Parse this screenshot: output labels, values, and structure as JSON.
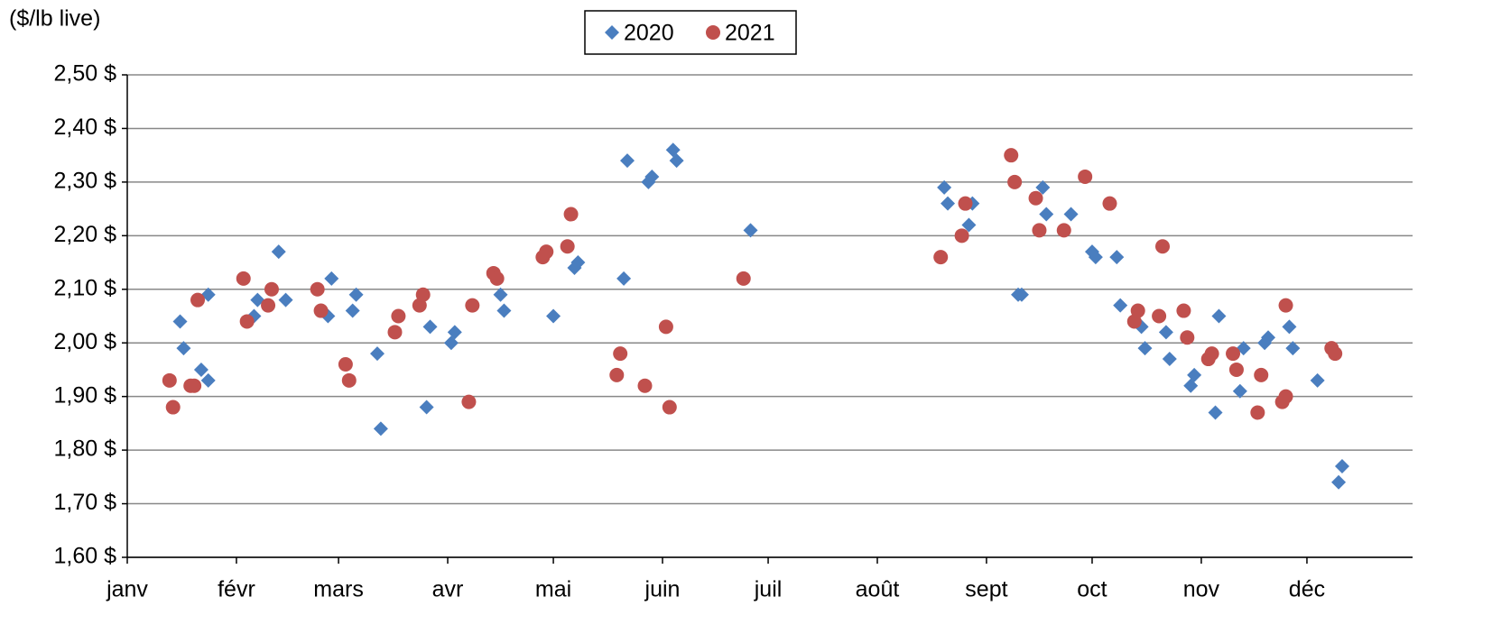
{
  "chart_data": {
    "type": "scatter",
    "ylabel": "($/lb live)",
    "legend": "top",
    "xlim": [
      0,
      365
    ],
    "xticks": [
      {
        "value": 0,
        "label": "janv"
      },
      {
        "value": 31,
        "label": "févr"
      },
      {
        "value": 60,
        "label": "mars"
      },
      {
        "value": 91,
        "label": "avr"
      },
      {
        "value": 121,
        "label": "mai"
      },
      {
        "value": 152,
        "label": "juin"
      },
      {
        "value": 182,
        "label": "juil"
      },
      {
        "value": 213,
        "label": "août"
      },
      {
        "value": 244,
        "label": "sept"
      },
      {
        "value": 274,
        "label": "oct"
      },
      {
        "value": 305,
        "label": "nov"
      },
      {
        "value": 335,
        "label": "déc"
      }
    ],
    "ylim": [
      1.6,
      2.5
    ],
    "yticks": [
      {
        "value": 1.6,
        "label": "1,60 $"
      },
      {
        "value": 1.7,
        "label": "1,70 $"
      },
      {
        "value": 1.8,
        "label": "1,80 $"
      },
      {
        "value": 1.9,
        "label": "1,90 $"
      },
      {
        "value": 2.0,
        "label": "2,00 $"
      },
      {
        "value": 2.1,
        "label": "2,10 $"
      },
      {
        "value": 2.2,
        "label": "2,20 $"
      },
      {
        "value": 2.3,
        "label": "2,30 $"
      },
      {
        "value": 2.4,
        "label": "2,40 $"
      },
      {
        "value": 2.5,
        "label": "2,50 $"
      }
    ],
    "grid": true,
    "series": [
      {
        "name": "2020",
        "color": "#4a7ebf",
        "marker": "diamond",
        "x": [
          15,
          16,
          21,
          23,
          23,
          36,
          37,
          43,
          45,
          57,
          58,
          64,
          65,
          71,
          72,
          85,
          86,
          92,
          93,
          106,
          107,
          121,
          127,
          128,
          141,
          142,
          148,
          149,
          155,
          156,
          177,
          232,
          233,
          239,
          240,
          253,
          254,
          260,
          261,
          268,
          274,
          275,
          281,
          282,
          288,
          289,
          295,
          296,
          302,
          303,
          309,
          310,
          316,
          317,
          323,
          324,
          330,
          331,
          338,
          344,
          345
        ],
        "values": [
          2.04,
          1.99,
          1.95,
          1.93,
          2.09,
          2.05,
          2.08,
          2.17,
          2.08,
          2.05,
          2.12,
          2.06,
          2.09,
          1.98,
          1.84,
          1.88,
          2.03,
          2.0,
          2.02,
          2.09,
          2.06,
          2.05,
          2.14,
          2.15,
          2.12,
          2.34,
          2.3,
          2.31,
          2.36,
          2.34,
          2.21,
          2.29,
          2.26,
          2.22,
          2.26,
          2.09,
          2.09,
          2.29,
          2.24,
          2.24,
          2.17,
          2.16,
          2.16,
          2.07,
          2.03,
          1.99,
          2.02,
          1.97,
          1.92,
          1.94,
          1.87,
          2.05,
          1.91,
          1.99,
          2.0,
          2.01,
          2.03,
          1.99,
          1.93,
          1.74,
          1.77
        ]
      },
      {
        "name": "2021",
        "color": "#c0504d",
        "marker": "circle",
        "x": [
          12,
          13,
          18,
          19,
          20,
          33,
          34,
          40,
          41,
          54,
          55,
          62,
          63,
          76,
          77,
          83,
          84,
          97,
          98,
          104,
          105,
          118,
          119,
          125,
          126,
          139,
          140,
          147,
          153,
          154,
          175,
          231,
          237,
          238,
          251,
          252,
          258,
          259,
          266,
          272,
          279,
          286,
          287,
          293,
          294,
          300,
          301,
          307,
          308,
          314,
          315,
          321,
          322,
          328,
          329,
          329,
          342,
          343
        ],
        "values": [
          1.93,
          1.88,
          1.92,
          1.92,
          2.08,
          2.12,
          2.04,
          2.07,
          2.1,
          2.1,
          2.06,
          1.96,
          1.93,
          2.02,
          2.05,
          2.07,
          2.09,
          1.89,
          2.07,
          2.13,
          2.12,
          2.16,
          2.17,
          2.18,
          2.24,
          1.94,
          1.98,
          1.92,
          2.03,
          1.88,
          2.12,
          2.16,
          2.2,
          2.26,
          2.35,
          2.3,
          2.27,
          2.21,
          2.21,
          2.31,
          2.26,
          2.04,
          2.06,
          2.05,
          2.18,
          2.06,
          2.01,
          1.97,
          1.98,
          1.98,
          1.95,
          1.87,
          1.94,
          1.89,
          1.9,
          2.07,
          1.99,
          1.98
        ]
      }
    ]
  }
}
